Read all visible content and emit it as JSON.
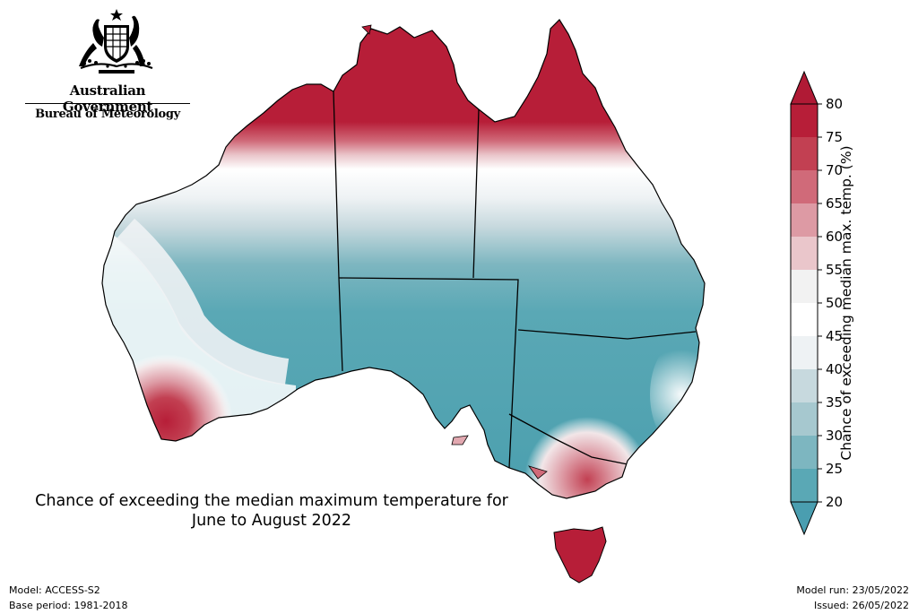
{
  "header": {
    "gov_name": "Australian Government",
    "bureau_name": "Bureau of Meteorology"
  },
  "map_title": {
    "line1": "Chance of exceeding the median maximum temperature for",
    "line2": "June to August 2022"
  },
  "footer": {
    "model": "Model: ACCESS-S2",
    "base_period": "Base period: 1981-2018",
    "model_run": "Model run: 23/05/2022",
    "issued": "Issued: 26/05/2022"
  },
  "colorbar": {
    "title": "Chance of exceeding median max. temp. (%)",
    "ticks": [
      "80",
      "75",
      "70",
      "65",
      "60",
      "55",
      "50",
      "45",
      "40",
      "35",
      "30",
      "25",
      "20"
    ],
    "colors": [
      "#b71e38",
      "#c24052",
      "#d06a79",
      "#dd9aa4",
      "#eac6cb",
      "#f2f2f2",
      "#ffffff",
      "#eef2f4",
      "#c7d9de",
      "#a6c8cf",
      "#7db6c0",
      "#5aa8b5",
      "#4b9fae"
    ],
    "over_color": "#b01a35",
    "under_color": "#4a9eb0"
  },
  "legend_map": {
    "north_band": "#b71e38",
    "inland_high": "#4b9fae"
  }
}
